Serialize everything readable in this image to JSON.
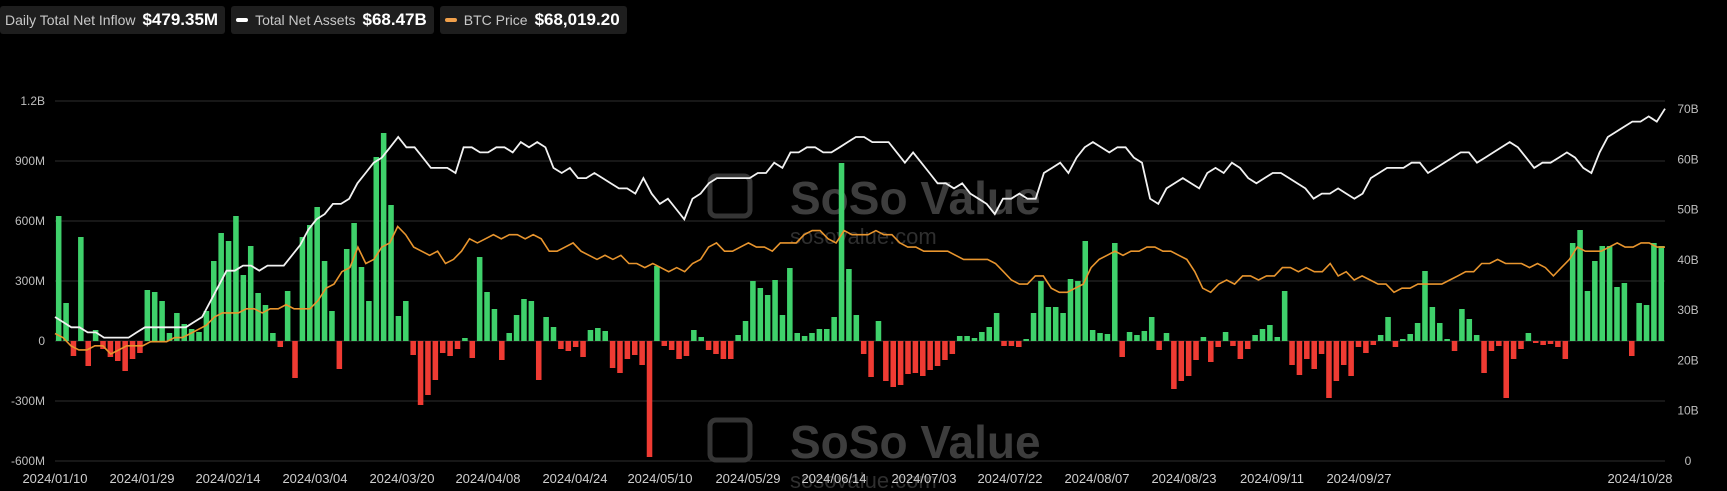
{
  "legend": [
    {
      "label": "Daily Total Net Inflow",
      "value": "$479.35M",
      "color": "#3d3d3d"
    },
    {
      "label": "Total Net Assets",
      "value": "$68.47B",
      "color": "#ffffff"
    },
    {
      "label": "BTC Price",
      "value": "$68,019.20",
      "color": "#f0a04b"
    }
  ],
  "watermark": {
    "brand": "SoSo Value",
    "url": "sosovalue.com"
  },
  "colors": {
    "positive": "#3fd16b",
    "negative": "#ef3b33",
    "assets_line": "#f2f2f2",
    "btc_line": "#e8952e",
    "grid": "#2e2e2e"
  },
  "chart_data": {
    "type": "bar",
    "x_tick_labels": [
      "2024/01/10",
      "2024/01/29",
      "2024/02/14",
      "2024/03/04",
      "2024/03/20",
      "2024/04/08",
      "2024/04/24",
      "2024/05/10",
      "2024/05/29",
      "2024/06/14",
      "2024/07/03",
      "2024/07/22",
      "2024/08/07",
      "2024/08/23",
      "2024/09/11",
      "2024/09/27",
      "2024/10/28"
    ],
    "y_left": {
      "ticks": [
        "1.2B",
        "900M",
        "600M",
        "300M",
        "0",
        "-300M",
        "-600M"
      ],
      "min": -600,
      "max": 1200,
      "unit": "M"
    },
    "y_right": {
      "ticks": [
        "70B",
        "60B",
        "50B",
        "40B",
        "30B",
        "20B",
        "10B",
        "0"
      ],
      "min": 0,
      "max": 70,
      "unit": "B"
    },
    "grid": true,
    "series": [
      {
        "name": "Daily Total Net Inflow",
        "kind": "bar",
        "axis": "left",
        "values": [
          625,
          190,
          -75,
          520,
          -125,
          55,
          -40,
          -80,
          -100,
          -150,
          -90,
          -60,
          255,
          245,
          200,
          40,
          140,
          85,
          60,
          45,
          150,
          400,
          540,
          500,
          625,
          330,
          475,
          240,
          180,
          40,
          -30,
          250,
          -185,
          520,
          580,
          670,
          400,
          150,
          -140,
          460,
          590,
          370,
          200,
          920,
          1040,
          680,
          125,
          200,
          -70,
          -320,
          -270,
          -195,
          -60,
          -75,
          -40,
          15,
          -85,
          420,
          245,
          160,
          -95,
          40,
          130,
          210,
          200,
          -195,
          120,
          70,
          -40,
          -50,
          -30,
          -80,
          55,
          65,
          50,
          -135,
          -160,
          -90,
          -70,
          -120,
          -580,
          375,
          -25,
          -45,
          -90,
          -75,
          55,
          20,
          -45,
          -65,
          -90,
          -90,
          30,
          100,
          300,
          265,
          230,
          305,
          130,
          365,
          40,
          25,
          40,
          60,
          60,
          120,
          890,
          360,
          130,
          -65,
          -180,
          100,
          -200,
          -230,
          -220,
          -165,
          -160,
          -175,
          -145,
          -125,
          -95,
          -65,
          25,
          25,
          15,
          45,
          70,
          140,
          -25,
          -25,
          -30,
          10,
          140,
          300,
          170,
          170,
          140,
          310,
          300,
          500,
          55,
          40,
          35,
          490,
          -80,
          45,
          30,
          50,
          120,
          -45,
          40,
          -240,
          -200,
          -175,
          -95,
          20,
          -105,
          -30,
          45,
          -25,
          -90,
          -40,
          30,
          60,
          80,
          20,
          250,
          -120,
          -170,
          -90,
          -140,
          -65,
          -285,
          -200,
          -120,
          -175,
          -30,
          -60,
          -20,
          30,
          120,
          -30,
          10,
          35,
          90,
          350,
          170,
          90,
          10,
          -50,
          160,
          110,
          30,
          -160,
          -50,
          -25,
          -285,
          -90,
          -40,
          40,
          -10,
          -20,
          -15,
          -30,
          -90,
          490,
          555,
          250,
          400,
          475,
          475,
          270,
          290,
          -75,
          190,
          180,
          490,
          475
        ]
      },
      {
        "name": "Total Net Assets",
        "kind": "line",
        "axis": "right",
        "values": [
          28,
          27,
          26,
          26,
          25,
          25,
          24,
          24,
          24,
          24,
          25,
          26,
          26,
          26,
          26,
          26,
          26,
          27,
          28,
          31,
          34,
          37,
          37,
          38,
          38,
          37,
          38,
          38,
          38,
          40,
          42,
          45,
          47,
          48,
          50,
          50,
          51,
          54,
          56,
          58,
          59,
          61,
          63,
          61,
          61,
          59,
          57,
          57,
          57,
          56,
          61,
          61,
          60,
          60,
          61,
          61,
          60,
          62,
          61,
          62,
          61,
          57,
          56,
          57,
          55,
          55,
          56,
          55,
          54,
          53,
          53,
          52,
          55,
          52,
          50,
          51,
          49,
          47,
          51,
          52,
          54,
          55,
          55,
          55,
          55,
          55,
          56,
          56,
          58,
          57,
          60,
          60,
          61,
          61,
          60,
          60,
          61,
          62,
          63,
          63,
          62,
          62,
          62,
          60,
          58,
          60,
          58,
          56,
          54,
          54,
          53,
          54,
          52,
          51,
          50,
          48,
          51,
          51,
          52,
          51,
          51,
          56,
          57,
          58,
          56,
          59,
          61,
          62,
          61,
          60,
          61,
          61,
          59,
          58,
          51,
          50,
          53,
          54,
          55,
          54,
          53,
          56,
          57,
          56,
          58,
          57,
          55,
          54,
          55,
          56,
          56,
          55,
          54,
          53,
          51,
          52,
          52,
          53,
          52,
          51,
          52,
          55,
          56,
          57,
          57,
          57,
          58,
          58,
          56,
          57,
          58,
          59,
          60,
          60,
          58,
          59,
          60,
          61,
          62,
          61,
          59,
          57,
          58,
          58,
          59,
          60,
          59,
          57,
          56,
          60,
          63,
          64,
          65,
          66,
          66,
          67,
          66,
          68.5
        ]
      },
      {
        "name": "BTC Price",
        "kind": "line",
        "axis": "right",
        "values": [
          46,
          45,
          43,
          42,
          42,
          43,
          43,
          41,
          42,
          43,
          43,
          43,
          44,
          44,
          44,
          45,
          45,
          46,
          47,
          48,
          50,
          51,
          51,
          51,
          52,
          52,
          51,
          52,
          52,
          53,
          52,
          52,
          52,
          54,
          57,
          58,
          61,
          62,
          67,
          63,
          64,
          67,
          68,
          72,
          70,
          67,
          66,
          65,
          66,
          63,
          64,
          66,
          69,
          68,
          69,
          70,
          69,
          70,
          70,
          69,
          70,
          69,
          66,
          66,
          67,
          68,
          66,
          65,
          64,
          65,
          64,
          65,
          63,
          63,
          62,
          63,
          62,
          61,
          62,
          61,
          63,
          64,
          67,
          68,
          66,
          66,
          67,
          68,
          67,
          67,
          66,
          68,
          68,
          68,
          70,
          71,
          71,
          69,
          68,
          71,
          70,
          70,
          70,
          71,
          70,
          70,
          68,
          67,
          67,
          66,
          66,
          66,
          66,
          65,
          64,
          64,
          64,
          64,
          63,
          61,
          59,
          58,
          58,
          60,
          60,
          57,
          56,
          56,
          57,
          58,
          62,
          64,
          65,
          66,
          65,
          66,
          66,
          67,
          67,
          66,
          66,
          65,
          64,
          61,
          57,
          56,
          58,
          59,
          58,
          60,
          60,
          59,
          60,
          60,
          62,
          62,
          61,
          62,
          61,
          61,
          63,
          60,
          61,
          59,
          60,
          59,
          58,
          58,
          56,
          57,
          57,
          58,
          58,
          58,
          58,
          59,
          60,
          61,
          61,
          63,
          63,
          64,
          63,
          63,
          63,
          62,
          63,
          62,
          60,
          62,
          64,
          67,
          66,
          66,
          66,
          67,
          68,
          67,
          67,
          68,
          68,
          67,
          67
        ]
      }
    ],
    "btc_axis_note": "BTC price drawn on its own hidden scale"
  }
}
